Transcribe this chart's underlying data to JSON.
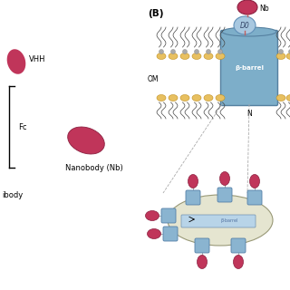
{
  "bg_color": "#ffffff",
  "crimson": "#c0355a",
  "blue_barrel": "#7daec9",
  "blue_barrel_dark": "#5580a0",
  "gold_lipid": "#e8c060",
  "gray_head": "#aaaaaa",
  "bacteria_fill": "#e5e5d0",
  "bacteria_edge": "#888888",
  "panel_b_label": "(B)",
  "om_label": "OM",
  "n_label": "N",
  "nb_label": "Nb",
  "d0_label": "D0",
  "beta_barrel_label": "β-barrel",
  "vhh_label": "VHH",
  "fc_label": "Fc",
  "nanobody_label": "Nanobody (Nb)",
  "antibody_label": "ibody"
}
